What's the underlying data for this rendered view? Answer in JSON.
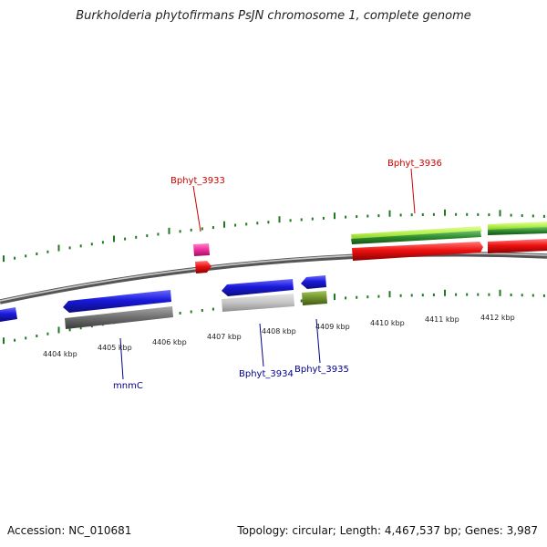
{
  "title": "Burkholderia phytofirmans PsJN chromosome 1, complete genome",
  "footer": {
    "accession": "Accession: NC_010681",
    "topology": "Topology: circular; Length: 4,467,537 bp; Genes: 3,987"
  },
  "colors": {
    "blue": "#1a1adb",
    "red": "#ee1111",
    "gray": "#777777",
    "light_gray": "#c4c4c4",
    "olive": "#6e8f2a",
    "lime": "#b4f04c",
    "dark_green": "#2e8a2e",
    "pink": "#ee2c9c",
    "label_red": "#cc0000",
    "label_blue": "#00008b",
    "tick_green": "#1f7a1f"
  },
  "scale_labels": [
    "4404 kbp",
    "4405 kbp",
    "4406 kbp",
    "4407 kbp",
    "4408 kbp",
    "4409 kbp",
    "4410 kbp",
    "4411 kbp",
    "4412 kbp"
  ],
  "gene_labels": [
    {
      "id": "Bphyt_3933",
      "color": "red"
    },
    {
      "id": "Bphyt_3936",
      "color": "red"
    },
    {
      "id": "mnmC",
      "color": "blue"
    },
    {
      "id": "Bphyt_3934",
      "color": "blue"
    },
    {
      "id": "Bphyt_3935",
      "color": "blue"
    }
  ]
}
